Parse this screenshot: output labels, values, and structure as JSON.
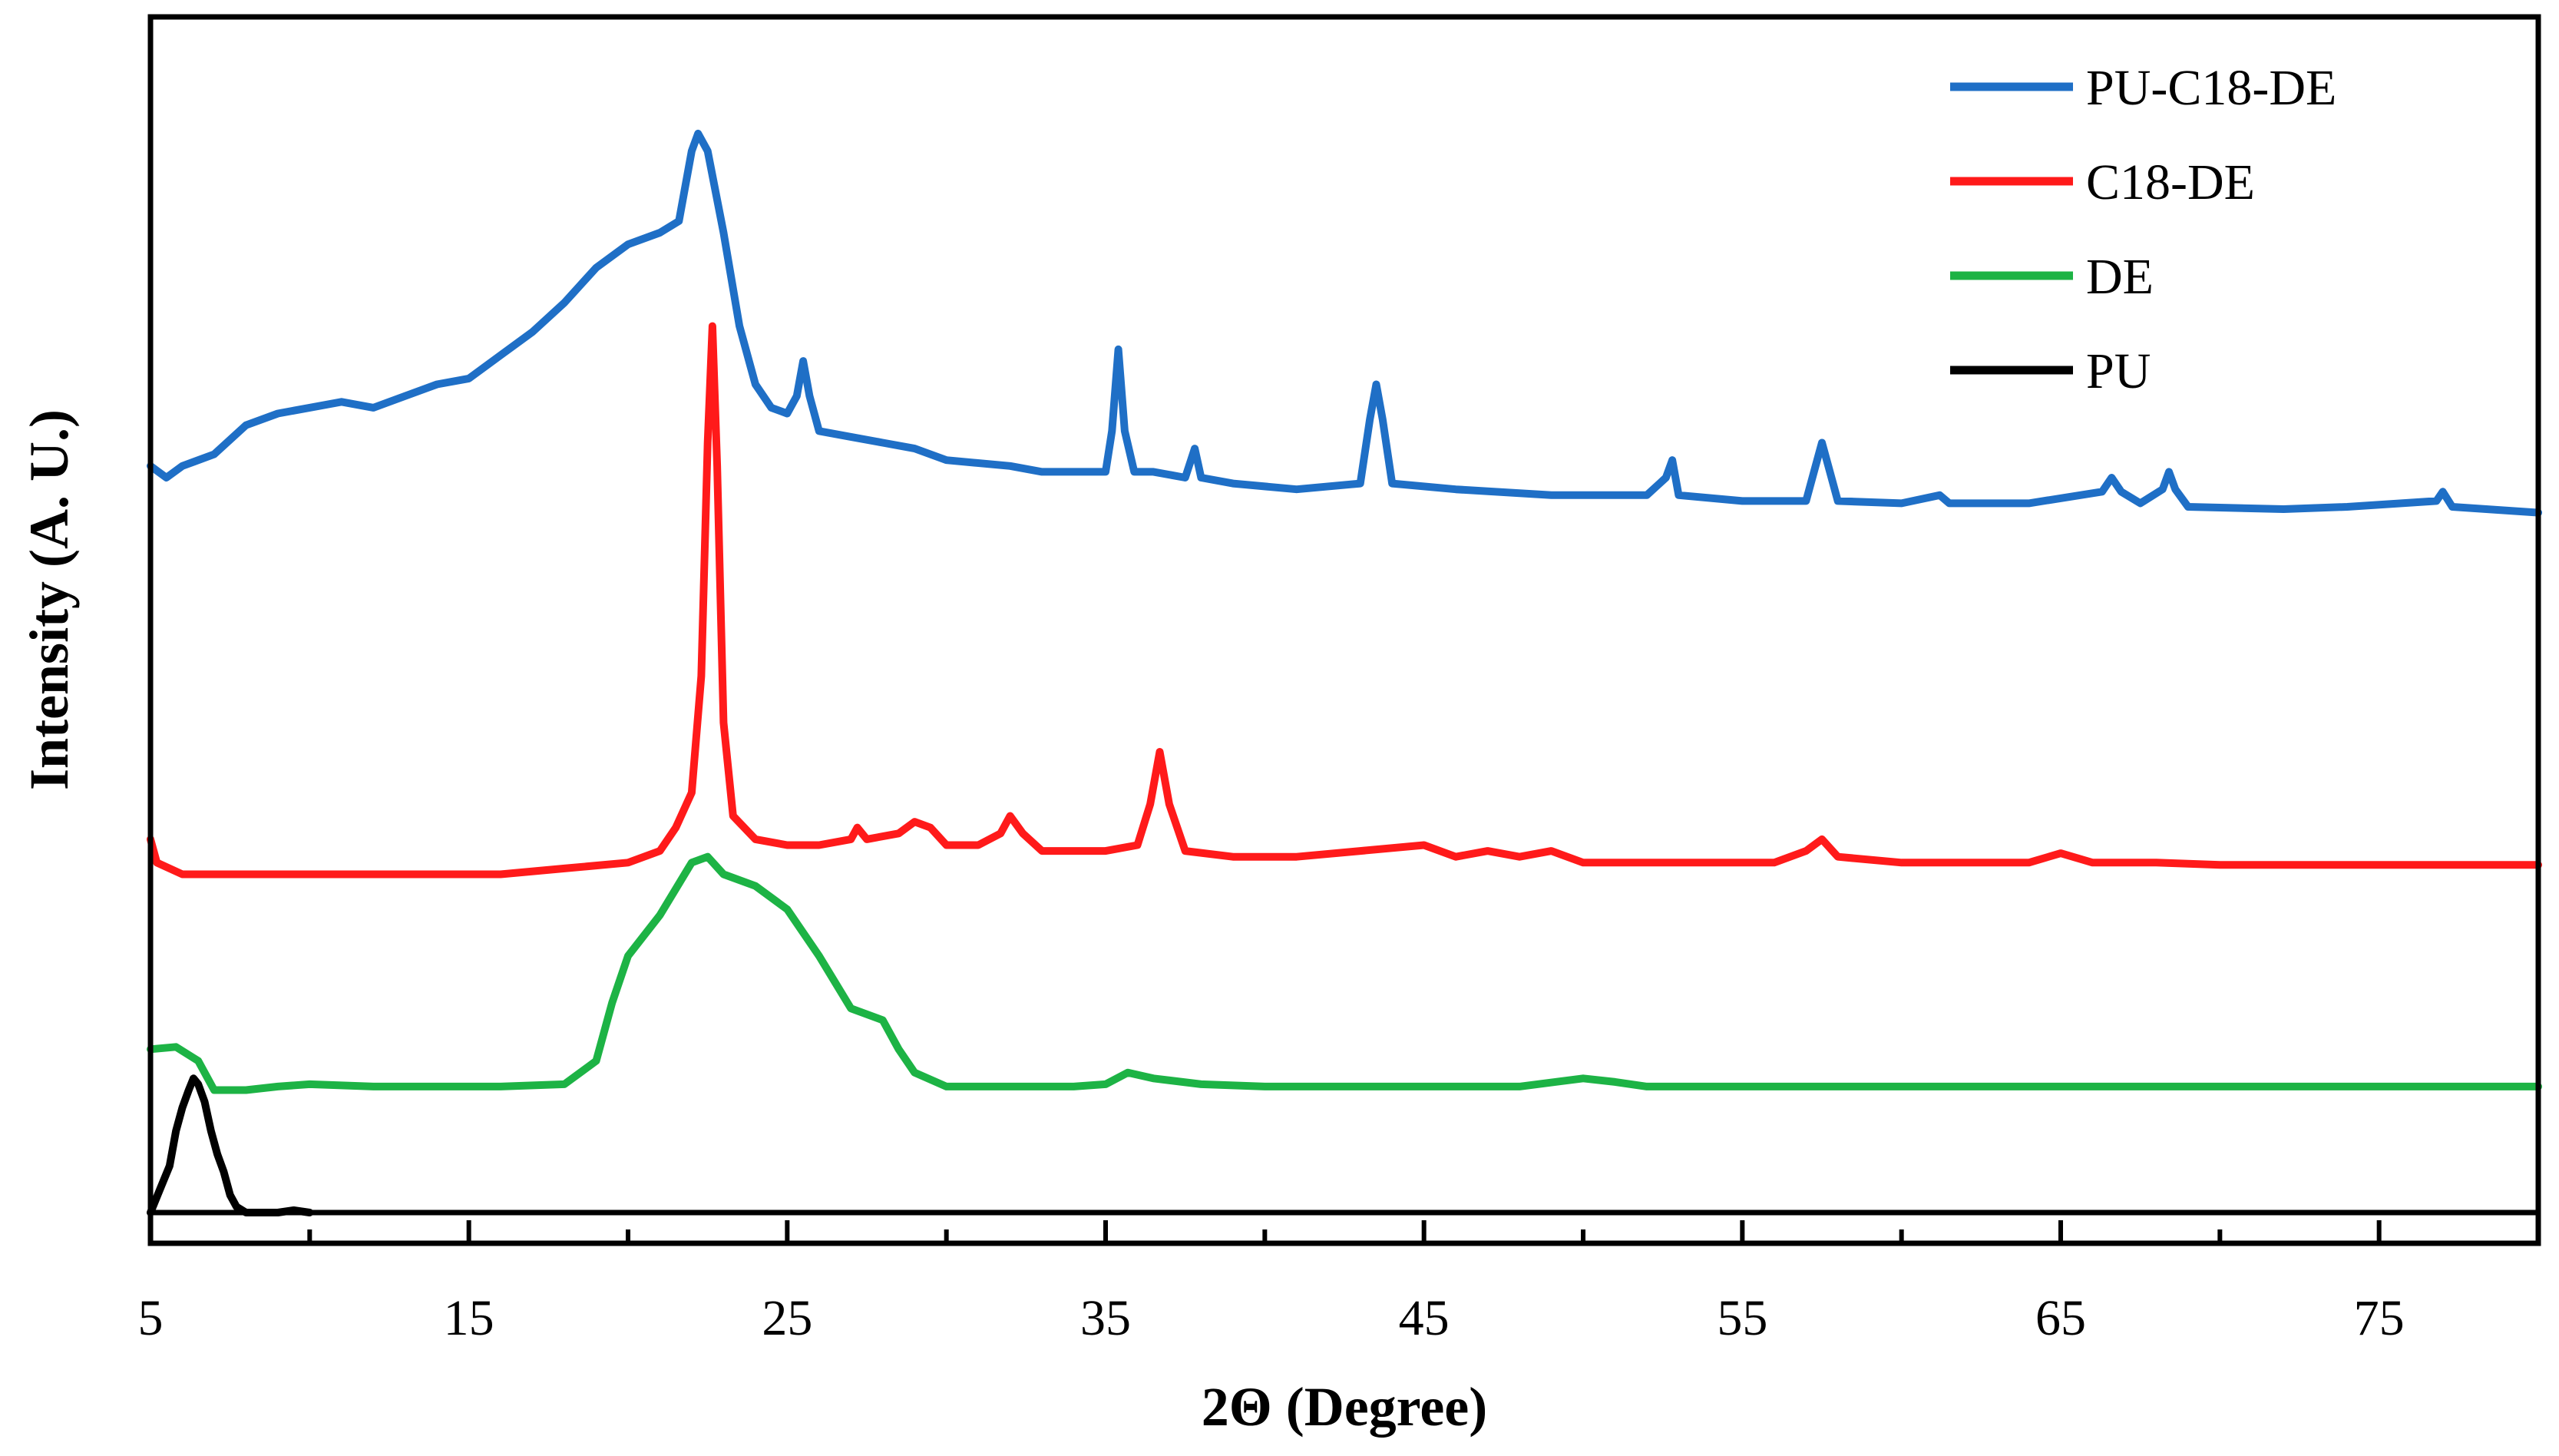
{
  "colors": {
    "pu_c18_de": "#1F6FC6",
    "c18_de": "#FF1A1A",
    "de": "#1DB345",
    "pu": "#000000",
    "axis": "#000000"
  },
  "chart_data": {
    "type": "line",
    "title": "",
    "xlabel": "2Θ (Degree)",
    "ylabel": "Intensity (A. U.)",
    "xlim": [
      5,
      80
    ],
    "ylim": [
      0,
      100
    ],
    "x_ticks": [
      5,
      15,
      25,
      35,
      45,
      55,
      65,
      75
    ],
    "x_tick_labels": [
      "5",
      "15",
      "25",
      "35",
      "45",
      "55",
      "65",
      "75"
    ],
    "y_ticks_shown": false,
    "grid": false,
    "legend_position": "top-right",
    "legend": [
      "PU-C18-DE",
      "C18-DE",
      "DE",
      "PU"
    ],
    "series": [
      {
        "name": "PU-C18-DE",
        "color_key": "pu_c18_de",
        "points": [
          [
            5,
            64
          ],
          [
            5.5,
            63
          ],
          [
            6,
            64
          ],
          [
            7,
            65
          ],
          [
            8,
            67.5
          ],
          [
            9,
            68.5
          ],
          [
            10,
            69
          ],
          [
            11,
            69.5
          ],
          [
            12,
            69
          ],
          [
            13,
            70
          ],
          [
            14,
            71
          ],
          [
            15,
            71.5
          ],
          [
            16,
            73.5
          ],
          [
            17,
            75.5
          ],
          [
            18,
            78
          ],
          [
            19,
            81
          ],
          [
            20,
            83
          ],
          [
            21,
            84
          ],
          [
            21.6,
            85
          ],
          [
            22,
            91
          ],
          [
            22.2,
            92.5
          ],
          [
            22.5,
            91
          ],
          [
            23,
            84
          ],
          [
            23.5,
            76
          ],
          [
            24,
            71
          ],
          [
            24.5,
            69
          ],
          [
            25,
            68.5
          ],
          [
            25.3,
            70
          ],
          [
            25.5,
            73
          ],
          [
            25.7,
            70
          ],
          [
            26,
            67
          ],
          [
            27,
            66.5
          ],
          [
            28,
            66
          ],
          [
            29,
            65.5
          ],
          [
            30,
            64.5
          ],
          [
            32,
            64
          ],
          [
            33,
            63.5
          ],
          [
            34,
            63.5
          ],
          [
            35,
            63.5
          ],
          [
            35.2,
            67
          ],
          [
            35.4,
            74
          ],
          [
            35.6,
            67
          ],
          [
            35.9,
            63.5
          ],
          [
            36.5,
            63.5
          ],
          [
            37.5,
            63
          ],
          [
            37.8,
            65.5
          ],
          [
            38,
            63
          ],
          [
            39,
            62.5
          ],
          [
            41,
            62
          ],
          [
            43,
            62.5
          ],
          [
            43.3,
            68
          ],
          [
            43.5,
            71
          ],
          [
            43.7,
            68
          ],
          [
            44,
            62.5
          ],
          [
            46,
            62
          ],
          [
            49,
            61.5
          ],
          [
            52,
            61.5
          ],
          [
            52.6,
            63
          ],
          [
            52.8,
            64.5
          ],
          [
            53,
            61.5
          ],
          [
            55,
            61
          ],
          [
            57,
            61
          ],
          [
            57.3,
            64
          ],
          [
            57.5,
            66
          ],
          [
            57.7,
            64
          ],
          [
            58,
            61
          ],
          [
            60,
            60.8
          ],
          [
            61.2,
            61.5
          ],
          [
            61.5,
            60.8
          ],
          [
            64,
            60.8
          ],
          [
            66.3,
            61.8
          ],
          [
            66.6,
            63
          ],
          [
            66.9,
            61.8
          ],
          [
            67.5,
            60.8
          ],
          [
            68.2,
            62
          ],
          [
            68.4,
            63.5
          ],
          [
            68.6,
            62
          ],
          [
            69,
            60.5
          ],
          [
            72,
            60.3
          ],
          [
            74,
            60.5
          ],
          [
            76.8,
            61
          ],
          [
            77,
            61.8
          ],
          [
            77.3,
            60.5
          ],
          [
            80,
            60
          ]
        ]
      },
      {
        "name": "C18-DE",
        "color_key": "c18_de",
        "points": [
          [
            5,
            32
          ],
          [
            5.2,
            30
          ],
          [
            6,
            29
          ],
          [
            8,
            29
          ],
          [
            10,
            29
          ],
          [
            12,
            29
          ],
          [
            14,
            29
          ],
          [
            16,
            29
          ],
          [
            18,
            29.5
          ],
          [
            20,
            30
          ],
          [
            21,
            31
          ],
          [
            21.5,
            33
          ],
          [
            22,
            36
          ],
          [
            22.3,
            46
          ],
          [
            22.5,
            66
          ],
          [
            22.65,
            76
          ],
          [
            22.8,
            64
          ],
          [
            23,
            42
          ],
          [
            23.3,
            34
          ],
          [
            24,
            32
          ],
          [
            25,
            31.5
          ],
          [
            26,
            31.5
          ],
          [
            27,
            32
          ],
          [
            27.2,
            33
          ],
          [
            27.5,
            32
          ],
          [
            28.5,
            32.5
          ],
          [
            29,
            33.5
          ],
          [
            29.5,
            33
          ],
          [
            30,
            31.5
          ],
          [
            31,
            31.5
          ],
          [
            31.7,
            32.5
          ],
          [
            32,
            34
          ],
          [
            32.4,
            32.5
          ],
          [
            33,
            31
          ],
          [
            35,
            31
          ],
          [
            36,
            31.5
          ],
          [
            36.4,
            35
          ],
          [
            36.7,
            39.5
          ],
          [
            37,
            35
          ],
          [
            37.5,
            31
          ],
          [
            39,
            30.5
          ],
          [
            41,
            30.5
          ],
          [
            43,
            31
          ],
          [
            45,
            31.5
          ],
          [
            46,
            30.5
          ],
          [
            47,
            31
          ],
          [
            48,
            30.5
          ],
          [
            49,
            31
          ],
          [
            50,
            30
          ],
          [
            52,
            30
          ],
          [
            54,
            30
          ],
          [
            56,
            30
          ],
          [
            57,
            31
          ],
          [
            57.5,
            32
          ],
          [
            58,
            30.5
          ],
          [
            60,
            30
          ],
          [
            62,
            30
          ],
          [
            64,
            30
          ],
          [
            65,
            30.8
          ],
          [
            66,
            30
          ],
          [
            68,
            30
          ],
          [
            70,
            29.8
          ],
          [
            72,
            29.8
          ],
          [
            74,
            29.8
          ],
          [
            76,
            29.8
          ],
          [
            78,
            29.8
          ],
          [
            80,
            29.8
          ]
        ]
      },
      {
        "name": "DE",
        "color_key": "de",
        "points": [
          [
            5,
            14
          ],
          [
            5.8,
            14.2
          ],
          [
            6.5,
            13
          ],
          [
            7,
            10.5
          ],
          [
            8,
            10.5
          ],
          [
            9,
            10.8
          ],
          [
            10,
            11
          ],
          [
            12,
            10.8
          ],
          [
            14,
            10.8
          ],
          [
            16,
            10.8
          ],
          [
            18,
            11
          ],
          [
            19,
            13
          ],
          [
            19.5,
            18
          ],
          [
            20,
            22
          ],
          [
            21,
            25.5
          ],
          [
            22,
            30
          ],
          [
            22.5,
            30.5
          ],
          [
            23,
            29
          ],
          [
            24,
            28
          ],
          [
            25,
            26
          ],
          [
            26,
            22
          ],
          [
            27,
            17.5
          ],
          [
            28,
            16.5
          ],
          [
            28.5,
            14
          ],
          [
            29,
            12
          ],
          [
            30,
            10.8
          ],
          [
            32,
            10.8
          ],
          [
            34,
            10.8
          ],
          [
            35,
            11
          ],
          [
            35.7,
            12
          ],
          [
            36.5,
            11.5
          ],
          [
            38,
            11
          ],
          [
            40,
            10.8
          ],
          [
            42,
            10.8
          ],
          [
            44,
            10.8
          ],
          [
            46,
            10.8
          ],
          [
            48,
            10.8
          ],
          [
            50,
            11.5
          ],
          [
            51,
            11.2
          ],
          [
            52,
            10.8
          ],
          [
            54,
            10.8
          ],
          [
            56,
            10.8
          ],
          [
            58,
            10.8
          ],
          [
            60,
            10.8
          ],
          [
            62,
            10.8
          ],
          [
            64,
            10.8
          ],
          [
            66,
            10.8
          ],
          [
            68,
            10.8
          ],
          [
            70,
            10.8
          ],
          [
            72,
            10.8
          ],
          [
            74,
            10.8
          ],
          [
            76,
            10.8
          ],
          [
            78,
            10.8
          ],
          [
            80,
            10.8
          ]
        ]
      },
      {
        "name": "PU",
        "color_key": "pu",
        "points": [
          [
            5,
            0
          ],
          [
            5.3,
            2
          ],
          [
            5.6,
            4
          ],
          [
            5.8,
            7
          ],
          [
            6,
            9
          ],
          [
            6.2,
            10.5
          ],
          [
            6.35,
            11.5
          ],
          [
            6.5,
            11
          ],
          [
            6.7,
            9.5
          ],
          [
            6.9,
            7
          ],
          [
            7.1,
            5
          ],
          [
            7.3,
            3.5
          ],
          [
            7.5,
            1.5
          ],
          [
            7.7,
            0.5
          ],
          [
            8,
            0
          ],
          [
            8.5,
            0
          ],
          [
            9,
            0
          ],
          [
            9.5,
            0.2
          ],
          [
            10,
            0
          ]
        ]
      }
    ]
  }
}
